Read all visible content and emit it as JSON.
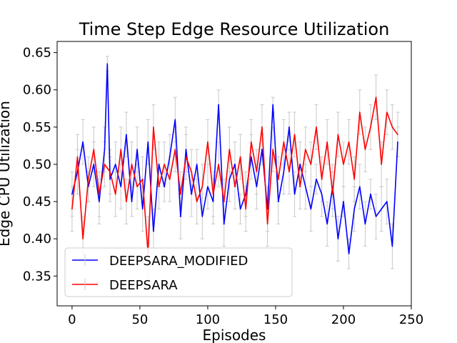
{
  "chart_data": {
    "type": "line",
    "title": "Time Step Edge Resource Utilization",
    "xlabel": "Episodes",
    "ylabel": "Edge CPU Utilization",
    "xlim": [
      -11,
      250
    ],
    "ylim": [
      0.31,
      0.665
    ],
    "xticks": [
      0,
      50,
      100,
      150,
      200,
      250
    ],
    "yticks": [
      0.35,
      0.4,
      0.45,
      0.5,
      0.55,
      0.6,
      0.65
    ],
    "ytick_labels": [
      "0.35",
      "0.40",
      "0.45",
      "0.50",
      "0.55",
      "0.60",
      "0.65"
    ],
    "legend_position": "lower-left",
    "grid": false,
    "error_bars": true,
    "series": [
      {
        "name": "DEEPSARA_MODIFIED",
        "color": "#0000ff",
        "x": [
          0,
          4,
          8,
          12,
          16,
          20,
          24,
          26,
          28,
          32,
          36,
          40,
          44,
          48,
          52,
          56,
          60,
          64,
          68,
          72,
          76,
          80,
          84,
          88,
          92,
          96,
          100,
          104,
          108,
          112,
          116,
          120,
          124,
          128,
          132,
          136,
          140,
          144,
          148,
          152,
          156,
          160,
          164,
          168,
          172,
          176,
          180,
          184,
          188,
          192,
          196,
          200,
          204,
          208,
          212,
          216,
          220,
          224,
          228,
          232,
          236,
          240
        ],
        "values": [
          0.46,
          0.49,
          0.53,
          0.47,
          0.5,
          0.45,
          0.52,
          0.635,
          0.48,
          0.5,
          0.47,
          0.54,
          0.45,
          0.52,
          0.44,
          0.53,
          0.41,
          0.5,
          0.47,
          0.51,
          0.56,
          0.43,
          0.52,
          0.46,
          0.5,
          0.43,
          0.47,
          0.45,
          0.58,
          0.42,
          0.48,
          0.5,
          0.44,
          0.46,
          0.51,
          0.47,
          0.52,
          0.44,
          0.58,
          0.45,
          0.49,
          0.55,
          0.46,
          0.5,
          0.47,
          0.44,
          0.48,
          0.46,
          0.42,
          0.47,
          0.4,
          0.45,
          0.38,
          0.44,
          0.47,
          0.42,
          0.46,
          0.43,
          0.44,
          0.45,
          0.39,
          0.53
        ],
        "errors": [
          0.03,
          0.03,
          0.03,
          0.02,
          0.03,
          0.03,
          0.03,
          0.01,
          0.03,
          0.03,
          0.03,
          0.03,
          0.02,
          0.03,
          0.03,
          0.03,
          0.03,
          0.03,
          0.02,
          0.03,
          0.03,
          0.03,
          0.03,
          0.03,
          0.02,
          0.03,
          0.03,
          0.03,
          0.02,
          0.03,
          0.03,
          0.03,
          0.02,
          0.03,
          0.03,
          0.03,
          0.02,
          0.03,
          0.01,
          0.03,
          0.03,
          0.02,
          0.03,
          0.03,
          0.03,
          0.03,
          0.02,
          0.03,
          0.03,
          0.03,
          0.03,
          0.02,
          0.02,
          0.03,
          0.03,
          0.03,
          0.02,
          0.03,
          0.03,
          0.03,
          0.03,
          0.02
        ]
      },
      {
        "name": "DEEPSARA",
        "color": "#ff0000",
        "x": [
          0,
          4,
          8,
          12,
          16,
          20,
          24,
          28,
          32,
          36,
          40,
          44,
          48,
          52,
          56,
          60,
          64,
          68,
          72,
          76,
          80,
          84,
          88,
          92,
          96,
          100,
          104,
          108,
          112,
          116,
          120,
          124,
          128,
          132,
          136,
          140,
          144,
          148,
          152,
          156,
          160,
          164,
          168,
          172,
          176,
          180,
          184,
          188,
          192,
          196,
          200,
          204,
          208,
          212,
          216,
          220,
          224,
          228,
          232,
          236,
          240
        ],
        "values": [
          0.44,
          0.51,
          0.4,
          0.48,
          0.52,
          0.46,
          0.5,
          0.49,
          0.46,
          0.52,
          0.45,
          0.5,
          0.47,
          0.48,
          0.38,
          0.55,
          0.47,
          0.5,
          0.48,
          0.52,
          0.46,
          0.51,
          0.49,
          0.45,
          0.47,
          0.53,
          0.46,
          0.5,
          0.45,
          0.52,
          0.47,
          0.51,
          0.44,
          0.53,
          0.49,
          0.55,
          0.42,
          0.52,
          0.48,
          0.53,
          0.49,
          0.54,
          0.47,
          0.52,
          0.5,
          0.55,
          0.48,
          0.53,
          0.46,
          0.54,
          0.5,
          0.53,
          0.48,
          0.57,
          0.52,
          0.55,
          0.59,
          0.5,
          0.57,
          0.55,
          0.54
        ],
        "errors": [
          0.03,
          0.03,
          0.03,
          0.03,
          0.03,
          0.03,
          0.03,
          0.03,
          0.03,
          0.03,
          0.03,
          0.03,
          0.03,
          0.03,
          0.05,
          0.03,
          0.03,
          0.03,
          0.03,
          0.03,
          0.03,
          0.03,
          0.03,
          0.03,
          0.03,
          0.03,
          0.03,
          0.03,
          0.03,
          0.03,
          0.03,
          0.03,
          0.03,
          0.03,
          0.03,
          0.03,
          0.03,
          0.03,
          0.03,
          0.03,
          0.03,
          0.03,
          0.03,
          0.03,
          0.03,
          0.03,
          0.03,
          0.03,
          0.03,
          0.03,
          0.03,
          0.03,
          0.03,
          0.03,
          0.03,
          0.03,
          0.03,
          0.03,
          0.03,
          0.03,
          0.03
        ]
      }
    ]
  }
}
